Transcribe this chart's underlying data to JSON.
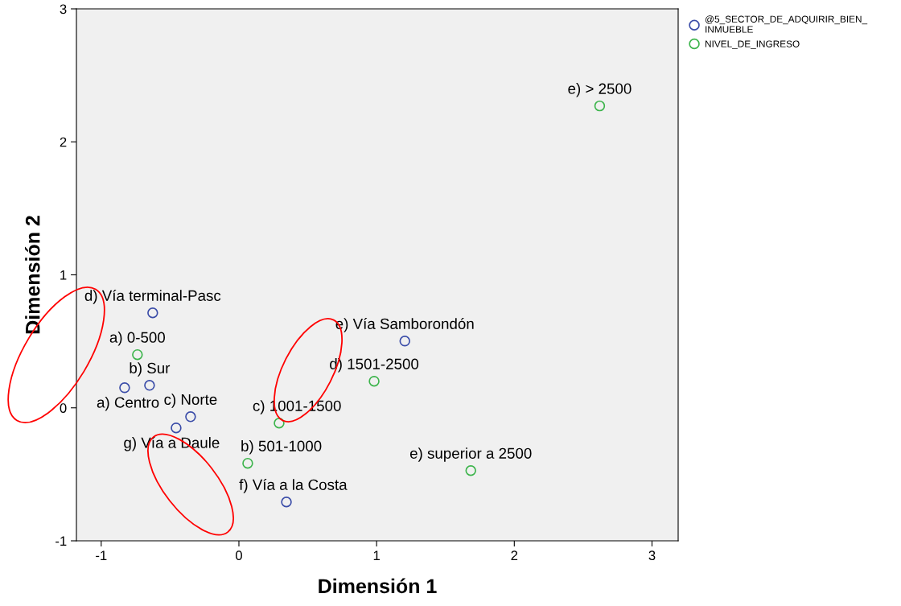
{
  "chart_data": {
    "type": "scatter",
    "xlabel": "Dimensión 1",
    "ylabel": "Dimensión 2",
    "series": [
      {
        "name": "@5_SECTOR_DE_ADQUIRIR_BIEN_\nINMUEBLE",
        "color": "#3a4ca8",
        "x": [
          -0.626,
          -0.649,
          -0.83,
          -0.351,
          -0.456,
          1.205,
          0.345
        ],
        "values": [
          0.714,
          0.169,
          0.151,
          -0.067,
          -0.151,
          0.502,
          -0.708
        ]
      },
      {
        "name": "NIVEL_DE_INGRESO",
        "color": "#3cb44b",
        "x": [
          2.62,
          -0.737,
          0.982,
          0.292,
          0.064,
          1.684
        ],
        "values": [
          2.27,
          0.4,
          0.2,
          -0.115,
          -0.417,
          -0.472
        ]
      }
    ],
    "annotations": [
      {
        "text": "d) Vía terminal-Pasc",
        "x": -0.626,
        "y": 0.714
      },
      {
        "text": "b) Sur",
        "x": -0.649,
        "y": 0.169
      },
      {
        "text": "a) Centro",
        "x": -0.83,
        "y": 0.151
      },
      {
        "text": "c) Norte",
        "x": -0.351,
        "y": -0.067
      },
      {
        "text": "g) Vía a Daule",
        "x": -0.456,
        "y": -0.151
      },
      {
        "text": "e) Vía Samborondón",
        "x": 1.205,
        "y": 0.502
      },
      {
        "text": "f) Vía a la Costa",
        "x": 0.345,
        "y": -0.708
      },
      {
        "text": "e) > 2500",
        "x": 2.62,
        "y": 2.27
      },
      {
        "text": "a) 0-500",
        "x": -0.737,
        "y": 0.4
      },
      {
        "text": "d) 1501-2500",
        "x": 0.982,
        "y": 0.2
      },
      {
        "text": "c) 1001-1500",
        "x": 0.292,
        "y": -0.115
      },
      {
        "text": "b) 501-1000",
        "x": 0.064,
        "y": -0.417
      },
      {
        "text": "e) superior a 2500",
        "x": 1.684,
        "y": -0.472
      }
    ],
    "xlim": [
      -1.18,
      3.19
    ],
    "ylim": [
      -1,
      3
    ],
    "xticks": [
      -1,
      0,
      1,
      2,
      3
    ],
    "yticks": [
      -1,
      0,
      1,
      2,
      3
    ],
    "grid": false,
    "legend": "top right",
    "marker": "circle"
  }
}
